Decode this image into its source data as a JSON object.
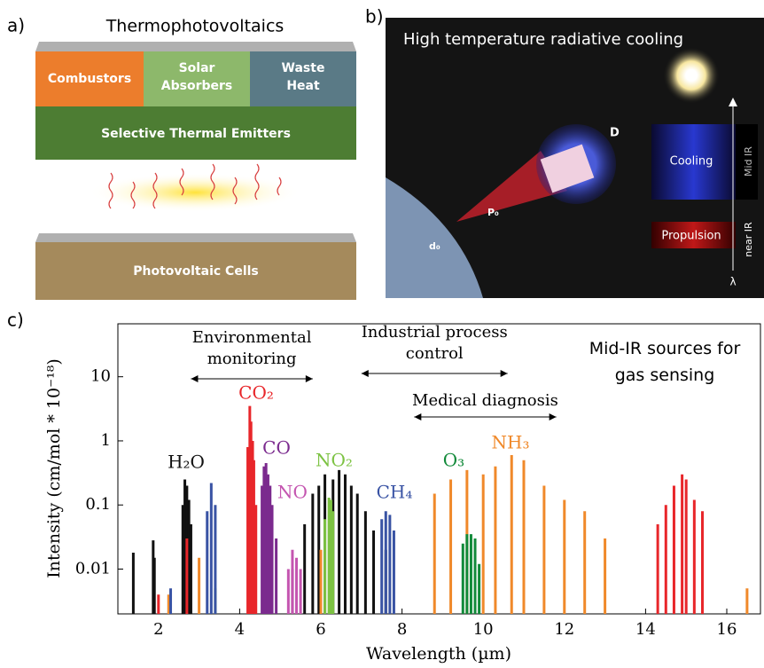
{
  "panel_a": {
    "label": "a)",
    "title": "Thermophotovoltaics",
    "boxes": [
      "Combustors",
      "Solar Absorbers",
      "Waste Heat"
    ],
    "emitter": "Selective Thermal Emitters",
    "cells": "Photovoltaic Cells"
  },
  "panel_b": {
    "label": "b)",
    "title": "High temperature radiative cooling",
    "size_label": "D",
    "power_label": "P₀",
    "aperture_label": "d₀",
    "bands": [
      "Cooling",
      "Propulsion"
    ],
    "axis_labels": [
      "Mid IR",
      "near IR"
    ],
    "wavelength_symbol": "λ"
  },
  "chart_data": {
    "type": "stem",
    "panel_label": "c)",
    "xlabel": "Wavelength (µm)",
    "ylabel": "Intensity (cm/mol * 10⁻¹⁸)",
    "note": "Mid-IR sources for gas sensing",
    "log_y": true,
    "xlim": [
      1.0,
      16.83
    ],
    "ylim": [
      0.002,
      67
    ],
    "xticks": [
      2,
      4,
      6,
      8,
      10,
      12,
      14,
      16
    ],
    "yticks": [
      0.01,
      0.1,
      1,
      10
    ],
    "annotations": [
      {
        "text": "Environmental monitoring",
        "range": [
          2.8,
          5.8
        ]
      },
      {
        "text": "Industrial process control",
        "range": [
          7.0,
          10.6
        ]
      },
      {
        "text": "Medical diagnosis",
        "range": [
          8.3,
          11.8
        ]
      }
    ],
    "series": [
      {
        "name": "H₂O",
        "color": "#111111",
        "x": [
          1.38,
          1.87,
          1.9,
          2.6,
          2.65,
          2.7,
          2.75,
          2.8,
          5.3,
          5.6,
          5.8,
          5.95,
          6.1,
          6.3,
          6.45,
          6.6,
          6.75,
          6.9,
          7.1,
          7.3,
          7.6
        ],
        "values": [
          0.018,
          0.028,
          0.015,
          0.1,
          0.25,
          0.2,
          0.12,
          0.05,
          0.01,
          0.05,
          0.15,
          0.2,
          0.3,
          0.25,
          0.35,
          0.3,
          0.2,
          0.15,
          0.08,
          0.04,
          0.02
        ]
      },
      {
        "name": "NH₃",
        "color": "#f0892a",
        "x": [
          2.25,
          3.0,
          6.0,
          8.8,
          9.2,
          9.6,
          10.0,
          10.3,
          10.7,
          11.0,
          11.5,
          12.0,
          12.5,
          13.0,
          16.5
        ],
        "values": [
          0.004,
          0.015,
          0.02,
          0.15,
          0.25,
          0.35,
          0.3,
          0.4,
          0.6,
          0.5,
          0.2,
          0.12,
          0.08,
          0.03,
          0.005
        ]
      },
      {
        "name": "CO₂",
        "color": "#e8262a",
        "x": [
          2.0,
          2.7,
          4.2,
          4.25,
          4.28,
          4.32,
          4.35,
          4.4,
          14.3,
          14.5,
          14.7,
          14.9,
          15.0,
          15.2,
          15.4
        ],
        "values": [
          0.004,
          0.03,
          0.8,
          3.5,
          2,
          1,
          0.5,
          0.1,
          0.05,
          0.1,
          0.2,
          0.3,
          0.25,
          0.12,
          0.08
        ]
      },
      {
        "name": "CO",
        "color": "#7b2a8e",
        "x": [
          4.55,
          4.6,
          4.65,
          4.7,
          4.75,
          4.8,
          4.9
        ],
        "values": [
          0.2,
          0.4,
          0.45,
          0.3,
          0.2,
          0.1,
          0.03
        ]
      },
      {
        "name": "NO",
        "color": "#c455b0",
        "x": [
          5.2,
          5.3,
          5.4,
          5.5
        ],
        "values": [
          0.01,
          0.02,
          0.015,
          0.01
        ]
      },
      {
        "name": "NO₂",
        "color": "#7cc242",
        "x": [
          3.4,
          6.1,
          6.2,
          6.25,
          6.3
        ],
        "values": [
          0.005,
          0.06,
          0.13,
          0.12,
          0.08
        ]
      },
      {
        "name": "CH₄",
        "color": "#3953a4",
        "x": [
          2.3,
          3.2,
          3.3,
          3.4,
          7.5,
          7.6,
          7.7,
          7.8
        ],
        "values": [
          0.005,
          0.08,
          0.22,
          0.1,
          0.06,
          0.08,
          0.07,
          0.04
        ]
      },
      {
        "name": "O₃",
        "color": "#128a3a",
        "x": [
          9.5,
          9.6,
          9.7,
          9.8,
          9.9
        ],
        "values": [
          0.025,
          0.035,
          0.035,
          0.03,
          0.012
        ]
      }
    ]
  }
}
